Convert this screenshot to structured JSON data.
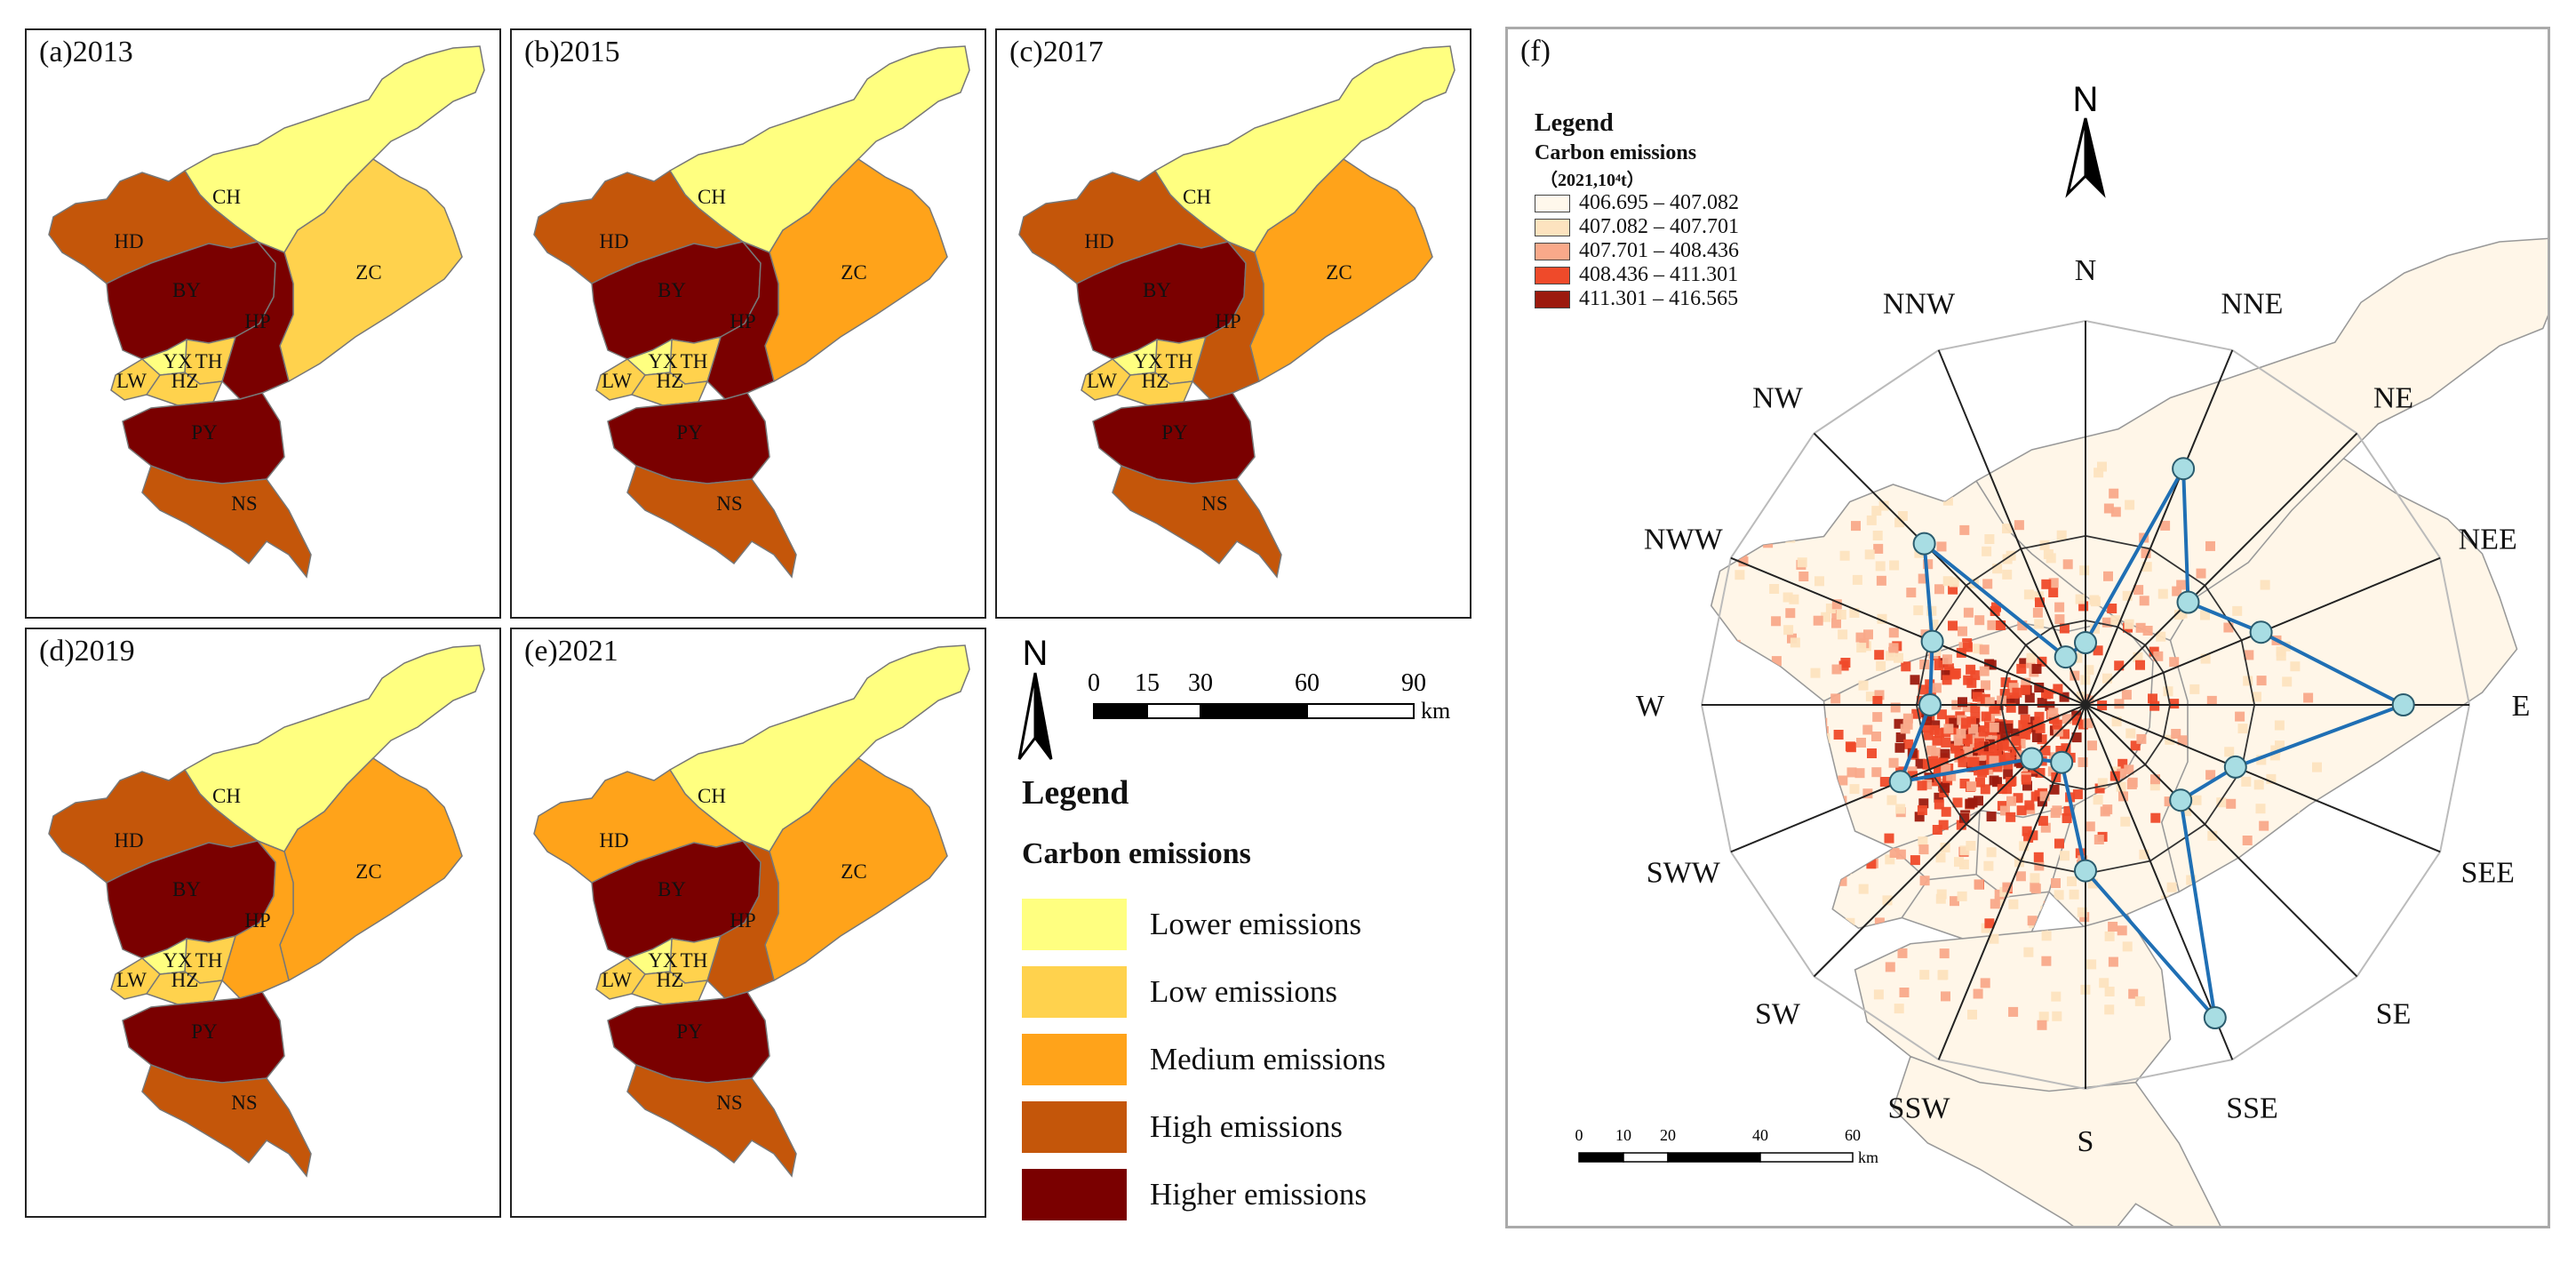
{
  "panels": [
    {
      "label": "(a)2013",
      "districts": {
        "CH": "Lower emissions",
        "ZC": "Low emissions",
        "HD": "High emissions",
        "BY": "Higher emissions",
        "HP": "Higher emissions",
        "TH": "Low emissions",
        "YX": "Lower emissions",
        "LW": "Low emissions",
        "HZ": "Low emissions",
        "PY": "Higher emissions",
        "NS": "High emissions"
      }
    },
    {
      "label": "(b)2015",
      "districts": {
        "CH": "Lower emissions",
        "ZC": "Medium emissions",
        "HD": "High emissions",
        "BY": "Higher emissions",
        "HP": "Higher emissions",
        "TH": "Low emissions",
        "YX": "Lower emissions",
        "LW": "Low emissions",
        "HZ": "Low emissions",
        "PY": "Higher emissions",
        "NS": "High emissions"
      }
    },
    {
      "label": "(c)2017",
      "districts": {
        "CH": "Lower emissions",
        "ZC": "Medium emissions",
        "HD": "High emissions",
        "BY": "Higher emissions",
        "HP": "High emissions",
        "TH": "Low emissions",
        "YX": "Lower emissions",
        "LW": "Low emissions",
        "HZ": "Low emissions",
        "PY": "Higher emissions",
        "NS": "High emissions"
      }
    },
    {
      "label": "(d)2019",
      "districts": {
        "CH": "Lower emissions",
        "ZC": "Medium emissions",
        "HD": "High emissions",
        "BY": "Higher emissions",
        "HP": "Medium emissions",
        "TH": "Low emissions",
        "YX": "Lower emissions",
        "LW": "Low emissions",
        "HZ": "Low emissions",
        "PY": "Higher emissions",
        "NS": "High emissions"
      }
    },
    {
      "label": "(e)2021",
      "districts": {
        "CH": "Lower emissions",
        "ZC": "Medium emissions",
        "HD": "Medium emissions",
        "BY": "Higher emissions",
        "HP": "High emissions",
        "TH": "Low emissions",
        "YX": "Lower emissions",
        "LW": "Low emissions",
        "HZ": "Low emissions",
        "PY": "Higher emissions",
        "NS": "High emissions"
      }
    }
  ],
  "district_names": [
    "CH",
    "ZC",
    "HD",
    "BY",
    "HP",
    "TH",
    "YX",
    "LW",
    "HZ",
    "PY",
    "NS"
  ],
  "scale": {
    "ticks": [
      "0",
      "15",
      "30",
      "60",
      "90"
    ],
    "unit": "km"
  },
  "north": "N",
  "legend": {
    "title": "Legend",
    "subtitle": "Carbon emissions",
    "classes": [
      {
        "label": "Lower emissions",
        "color": "#FFFF80"
      },
      {
        "label": "Low emissions",
        "color": "#FFD24D"
      },
      {
        "label": "Medium emissions",
        "color": "#FFA31A"
      },
      {
        "label": "High emissions",
        "color": "#C4560A"
      },
      {
        "label": "Higher emissions",
        "color": "#7A0000"
      }
    ]
  },
  "panel_f": {
    "label": "(f)",
    "legend_title": "Legend",
    "legend_subtitle": "Carbon emissions",
    "legend_unit": "（2021,10⁴t）",
    "classes": [
      {
        "label": "406.695 – 407.082",
        "color": "#FFF8EC"
      },
      {
        "label": "407.082 – 407.701",
        "color": "#FDE3BF"
      },
      {
        "label": "407.701 – 408.436",
        "color": "#F9A98A"
      },
      {
        "label": "408.436 – 411.301",
        "color": "#EF4A2A"
      },
      {
        "label": "411.301 – 416.565",
        "color": "#9C1A0E"
      }
    ],
    "north": "N",
    "directions": [
      "N",
      "NNE",
      "NE",
      "NEE",
      "E",
      "SEE",
      "SE",
      "SSE",
      "S",
      "SSW",
      "SW",
      "SWW",
      "W",
      "NWW",
      "NW",
      "NNW"
    ],
    "rose_radii_relative": [
      0.18,
      0.74,
      0.42,
      0.55,
      0.92,
      0.47,
      0.39,
      0.98,
      0.48,
      0.18,
      0.22,
      0.58,
      0.45,
      0.48,
      0.66,
      0.15
    ],
    "scale": {
      "ticks": [
        "0",
        "10",
        "20",
        "40",
        "60"
      ],
      "unit": "km"
    }
  }
}
